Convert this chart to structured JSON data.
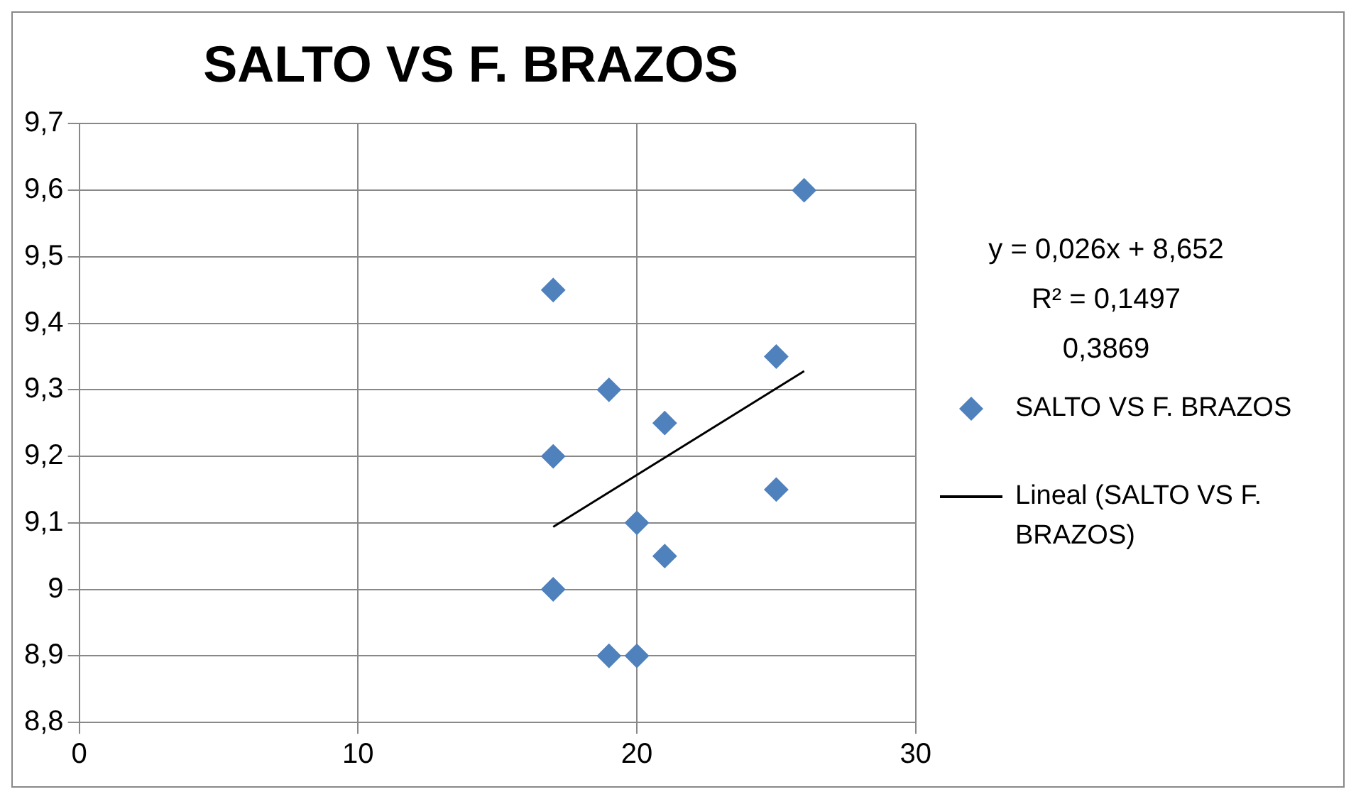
{
  "chart_data": {
    "type": "scatter",
    "title": "SALTO VS F. BRAZOS",
    "series": [
      {
        "name": "SALTO VS F. BRAZOS",
        "color": "#4f81bd",
        "marker": "diamond",
        "x": [
          17,
          26,
          25,
          19,
          21,
          17,
          25,
          20,
          21,
          17,
          19,
          20
        ],
        "values": [
          9.45,
          9.6,
          9.35,
          9.3,
          9.25,
          9.2,
          9.15,
          9.1,
          9.05,
          9.0,
          8.9,
          8.9
        ]
      },
      {
        "name": "Lineal (SALTO VS F. BRAZOS)",
        "type": "line",
        "color": "#000000",
        "marker": "none",
        "x": [
          17,
          26
        ],
        "values": [
          9.094,
          9.328
        ]
      }
    ],
    "xlim": [
      0,
      30
    ],
    "xticks": [
      0,
      10,
      20,
      30
    ],
    "ylim": [
      8.8,
      9.7
    ],
    "yticks": [
      {
        "value": 8.8,
        "label": "8,8"
      },
      {
        "value": 8.9,
        "label": "8,9"
      },
      9,
      {
        "value": 9.1,
        "label": "9,1"
      },
      {
        "value": 9.2,
        "label": "9,2"
      },
      {
        "value": 9.3,
        "label": "9,3"
      },
      {
        "value": 9.4,
        "label": "9,4"
      },
      {
        "value": 9.5,
        "label": "9,5"
      },
      {
        "value": 9.6,
        "label": "9,6"
      },
      {
        "value": 9.7,
        "label": "9,7"
      }
    ],
    "grid": true,
    "legend": "right",
    "annotations": [
      "y = 0,026x + 8,652",
      "R² = 0,1497",
      "0,3869"
    ]
  }
}
